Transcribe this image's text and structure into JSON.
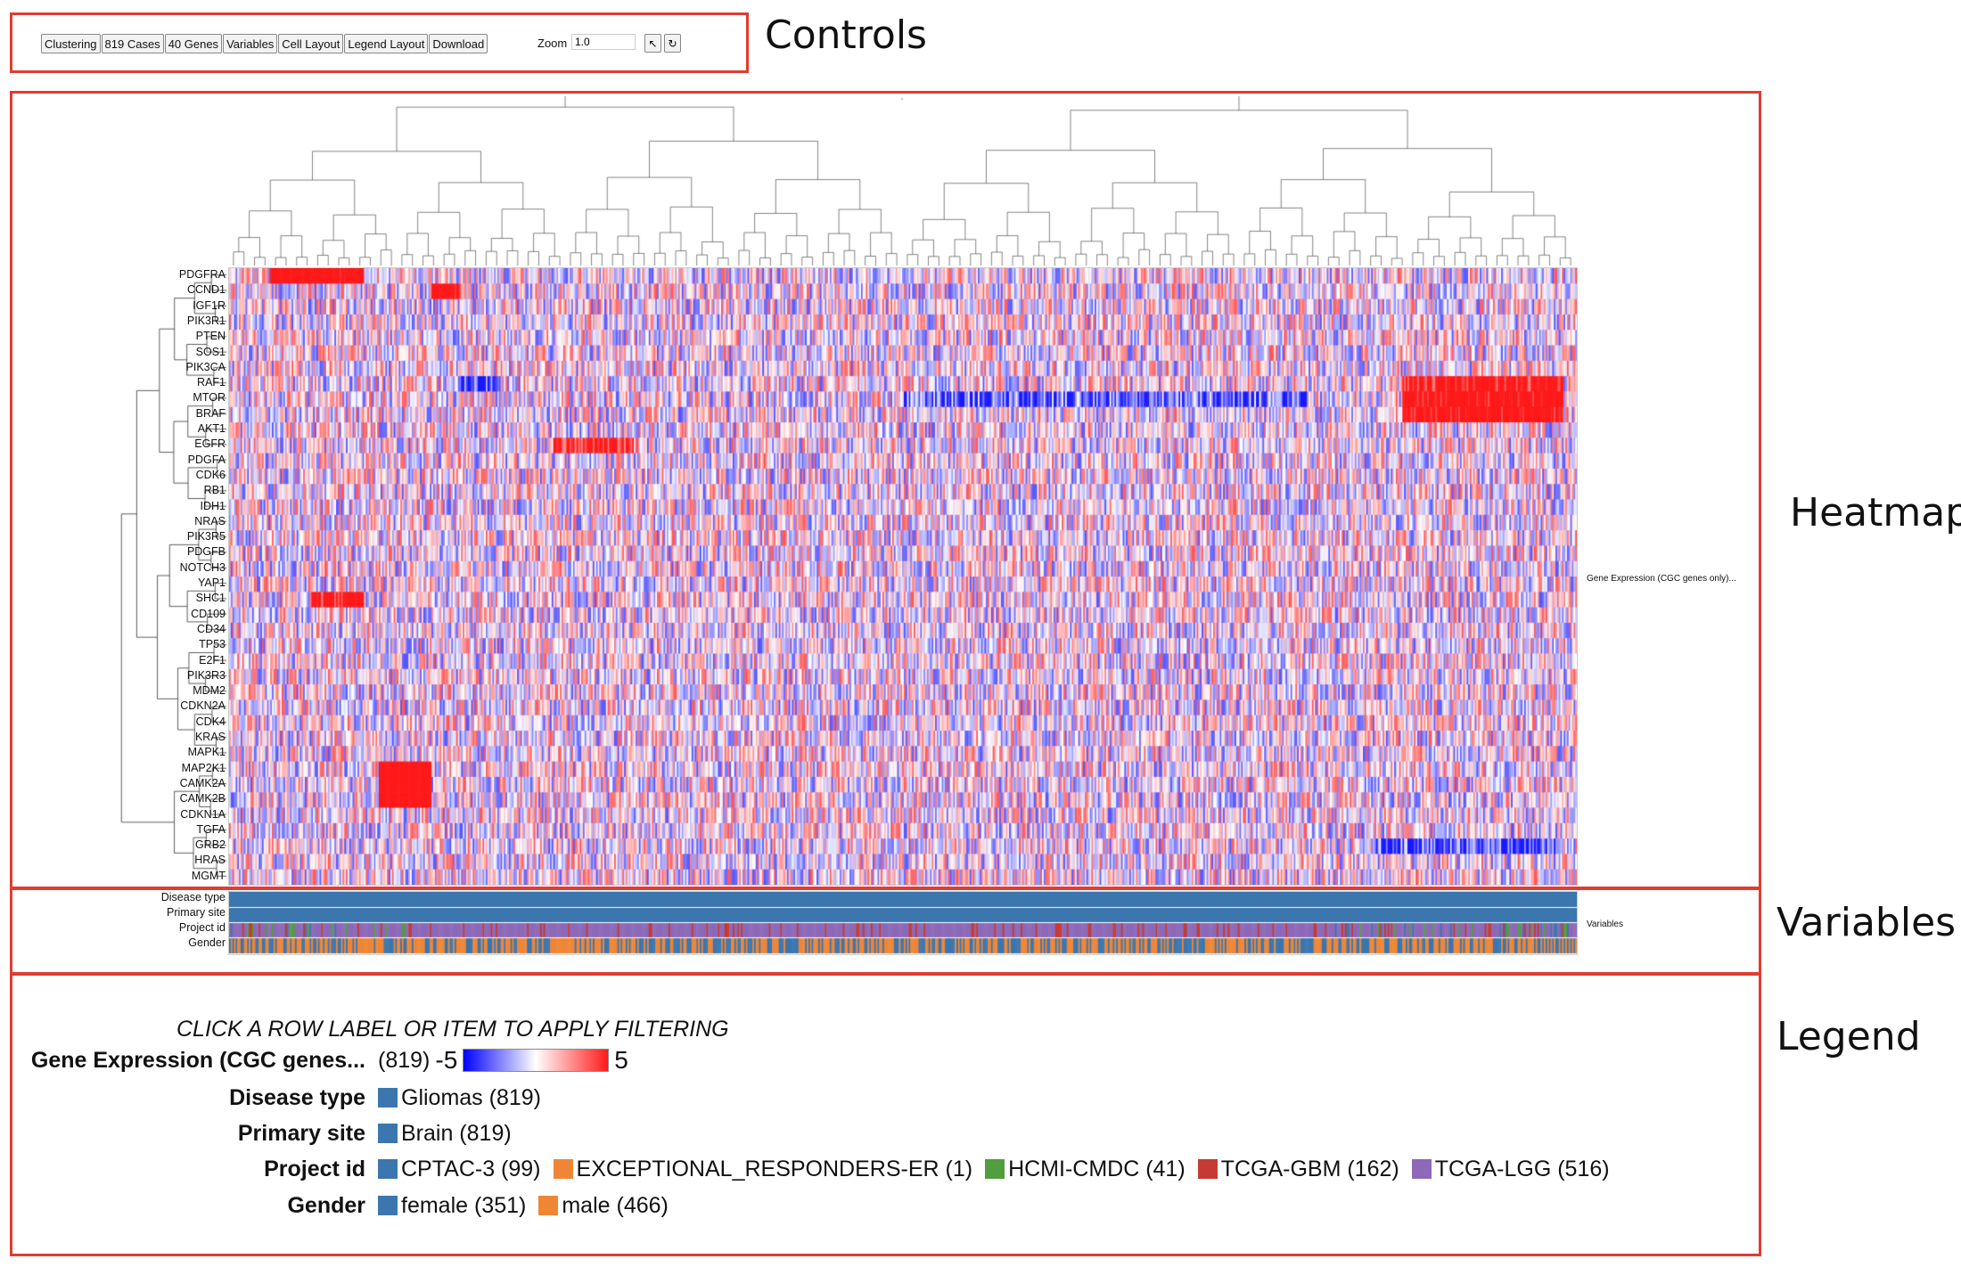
{
  "section_labels": {
    "controls": "Controls",
    "heatmap": "Heatmap",
    "variables": "Variables",
    "legend": "Legend"
  },
  "toolbar": {
    "buttons": [
      "Clustering",
      "819 Cases",
      "40 Genes",
      "Variables",
      "Cell Layout",
      "Legend Layout",
      "Download"
    ],
    "zoom_label": "Zoom",
    "zoom_value": "1.0",
    "pointer_icon": "cursor-arrow-icon",
    "reset_icon": "reset-circle-icon"
  },
  "heatmap": {
    "genes": [
      "PDGFRA",
      "CCND1",
      "IGF1R",
      "PIK3R1",
      "PTEN",
      "SOS1",
      "PIK3CA",
      "RAF1",
      "MTOR",
      "BRAF",
      "AKT1",
      "EGFR",
      "PDGFA",
      "CDK6",
      "RB1",
      "IDH1",
      "NRAS",
      "PIK3R5",
      "PDGFB",
      "NOTCH3",
      "YAP1",
      "SHC1",
      "CD109",
      "CD34",
      "TP53",
      "E2F1",
      "PIK3R3",
      "MDM2",
      "CDKN2A",
      "CDK4",
      "KRAS",
      "MAPK1",
      "MAP2K1",
      "CAMK2A",
      "CAMK2B",
      "CDKN1A",
      "TGFA",
      "GRB2",
      "HRAS",
      "MGMT"
    ],
    "side_label": "Gene Expression (CGC genes only)...",
    "num_cases": 819,
    "colors": {
      "low": "#0000ff",
      "mid": "#ffffff",
      "high": "#ff1a1a"
    }
  },
  "variables": {
    "tracks": [
      "Disease type",
      "Primary site",
      "Project id",
      "Gender"
    ],
    "side_label": "Variables"
  },
  "legend": {
    "note": "CLICK A ROW LABEL OR ITEM TO APPLY FILTERING",
    "gene_expression": {
      "label": "Gene Expression (CGC genes...",
      "count": "(819)",
      "min": "-5",
      "max": "5"
    },
    "rows": [
      {
        "label": "Disease type",
        "items": [
          {
            "text": "Gliomas (819)",
            "color": "#3b76af"
          }
        ]
      },
      {
        "label": "Primary site",
        "items": [
          {
            "text": "Brain (819)",
            "color": "#3b76af"
          }
        ]
      },
      {
        "label": "Project id",
        "items": [
          {
            "text": "CPTAC-3 (99)",
            "color": "#3b76af"
          },
          {
            "text": "EXCEPTIONAL_RESPONDERS-ER (1)",
            "color": "#ef8636"
          },
          {
            "text": "HCMI-CMDC (41)",
            "color": "#519e3e"
          },
          {
            "text": "TCGA-GBM (162)",
            "color": "#c53a32"
          },
          {
            "text": "TCGA-LGG (516)",
            "color": "#8d69b8"
          }
        ]
      },
      {
        "label": "Gender",
        "items": [
          {
            "text": "female (351)",
            "color": "#3b76af"
          },
          {
            "text": "male (466)",
            "color": "#ef8636"
          }
        ]
      }
    ]
  }
}
